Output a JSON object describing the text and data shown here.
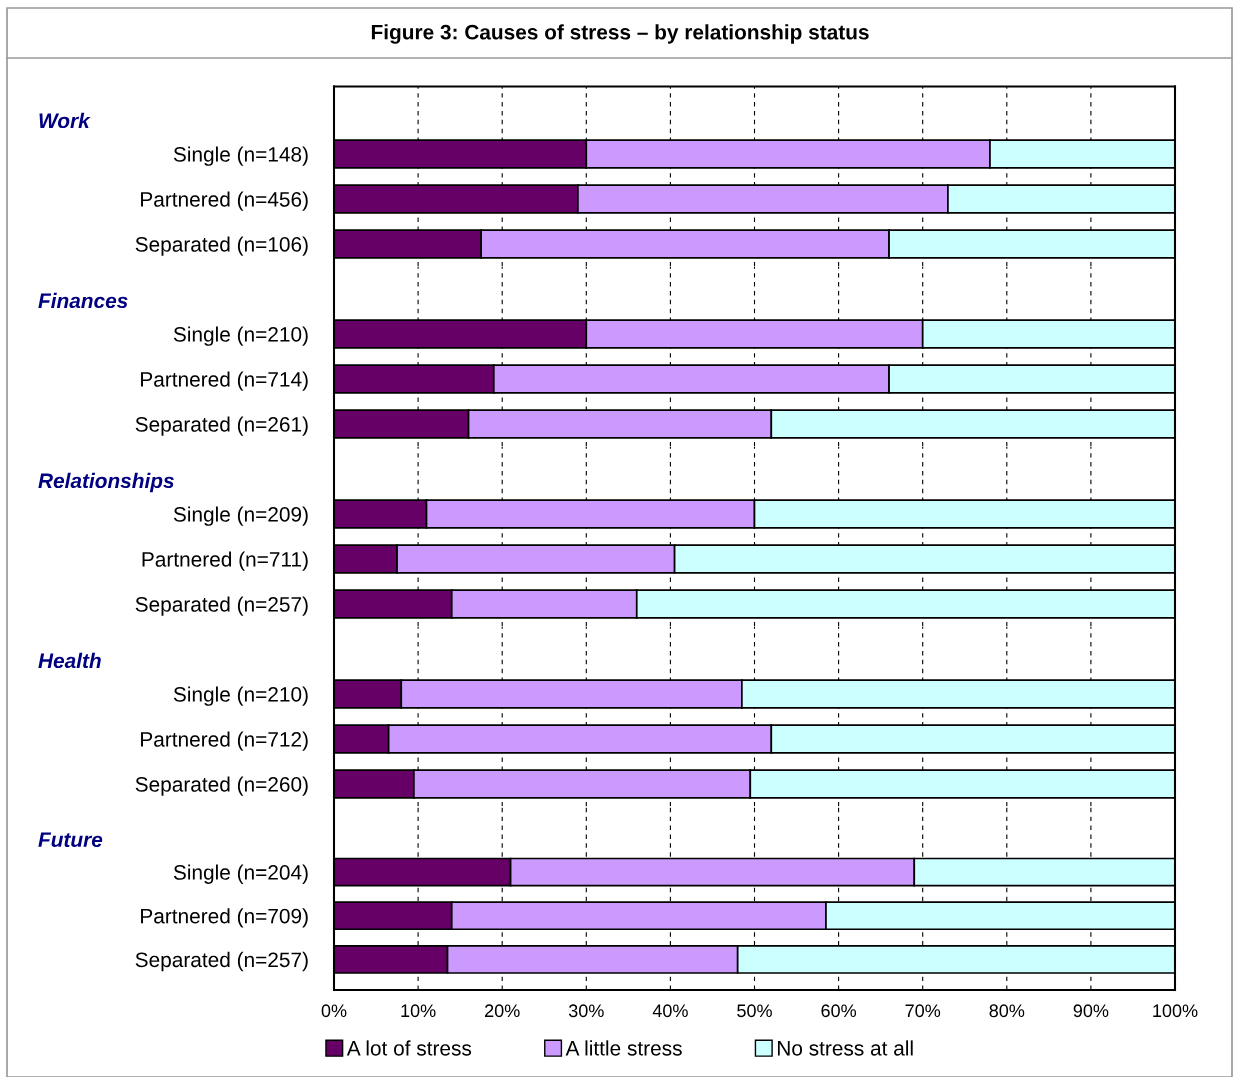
{
  "chart_data": [
    {
      "type": "bar",
      "orientation": "horizontal",
      "stacked": true,
      "title": "Work",
      "categories": [
        "Single (n=148)",
        "Partnered (n=456)",
        "Separated (n=106)"
      ],
      "series": [
        {
          "name": "A lot of stress",
          "color": "#660066",
          "values": [
            30,
            29,
            17.5
          ]
        },
        {
          "name": "A little stress",
          "color": "#cc99ff",
          "values": [
            48,
            44,
            48.5
          ]
        },
        {
          "name": "No stress at all",
          "color": "#ccffff",
          "values": [
            22,
            27,
            34
          ]
        }
      ],
      "xlim": [
        0,
        100
      ],
      "xticks": [
        0,
        10,
        20,
        30,
        40,
        50,
        60,
        70,
        80,
        90,
        100
      ],
      "tick_labels": "y",
      "grid": "x",
      "legend": "bottom"
    },
    {
      "type": "bar",
      "orientation": "horizontal",
      "stacked": true,
      "title": "Finances",
      "categories": [
        "Single (n=210)",
        "Partnered (n=714)",
        "Separated (n=261)"
      ],
      "series": [
        {
          "color": "#660066",
          "values": [
            30,
            19,
            16
          ]
        },
        {
          "color": "#cc99ff",
          "values": [
            40,
            47,
            36
          ]
        },
        {
          "color": "#ccffff",
          "values": [
            30,
            34,
            48
          ]
        }
      ],
      "xlim": [
        0,
        100
      ],
      "xticks": [
        0,
        10,
        20,
        30,
        40,
        50,
        60,
        70,
        80,
        90,
        100
      ],
      "tick_labels": "y",
      "grid": "x"
    },
    {
      "type": "bar",
      "orientation": "horizontal",
      "stacked": true,
      "title": "Relationships",
      "categories": [
        "Single (n=209)",
        "Partnered (n=711)",
        "Separated (n=257)"
      ],
      "series": [
        {
          "color": "#660066",
          "values": [
            11,
            7.5,
            14
          ]
        },
        {
          "color": "#cc99ff",
          "values": [
            39,
            33,
            22
          ]
        },
        {
          "color": "#ccffff",
          "values": [
            50,
            59.5,
            64
          ]
        }
      ],
      "xlim": [
        0,
        100
      ],
      "xticks": [
        0,
        10,
        20,
        30,
        40,
        50,
        60,
        70,
        80,
        90,
        100
      ],
      "tick_labels": "y",
      "grid": "x"
    },
    {
      "type": "bar",
      "orientation": "horizontal",
      "stacked": true,
      "title": "Health",
      "categories": [
        "Single (n=210)",
        "Partnered (n=712)",
        "Separated (n=260)"
      ],
      "series": [
        {
          "color": "#660066",
          "values": [
            8,
            6.5,
            9.5
          ]
        },
        {
          "color": "#cc99ff",
          "values": [
            40.5,
            45.5,
            40
          ]
        },
        {
          "color": "#ccffff",
          "values": [
            51.5,
            48,
            50.5
          ]
        }
      ],
      "xlim": [
        0,
        100
      ],
      "xticks": [
        0,
        10,
        20,
        30,
        40,
        50,
        60,
        70,
        80,
        90,
        100
      ],
      "tick_labels": "y",
      "grid": "x"
    },
    {
      "type": "bar",
      "orientation": "horizontal",
      "stacked": true,
      "title": "Future",
      "categories": [
        "Single (n=204)",
        "Partnered (n=709)",
        "Separated (n=257)"
      ],
      "series": [
        {
          "color": "#660066",
          "values": [
            21,
            14,
            13.5
          ]
        },
        {
          "color": "#cc99ff",
          "values": [
            48,
            44.5,
            34.5
          ]
        },
        {
          "color": "#ccffff",
          "values": [
            31,
            41.5,
            52
          ]
        }
      ],
      "xlim": [
        0,
        100
      ],
      "xticks": [
        {
          "value": 0,
          "label": "0%"
        },
        {
          "value": 10,
          "label": "10%"
        },
        {
          "value": 20,
          "label": "20%"
        },
        {
          "value": 30,
          "label": "30%"
        },
        {
          "value": 40,
          "label": "40%"
        },
        {
          "value": 50,
          "label": "50%"
        },
        {
          "value": 60,
          "label": "60%"
        },
        {
          "value": 70,
          "label": "70%"
        },
        {
          "value": 80,
          "label": "80%"
        },
        {
          "value": 90,
          "label": "90%"
        },
        {
          "value": 100,
          "label": "100%"
        }
      ],
      "grid": "x",
      "annotations": [
        "Figure 3: Causes of stress – by relationship status"
      ]
    }
  ]
}
